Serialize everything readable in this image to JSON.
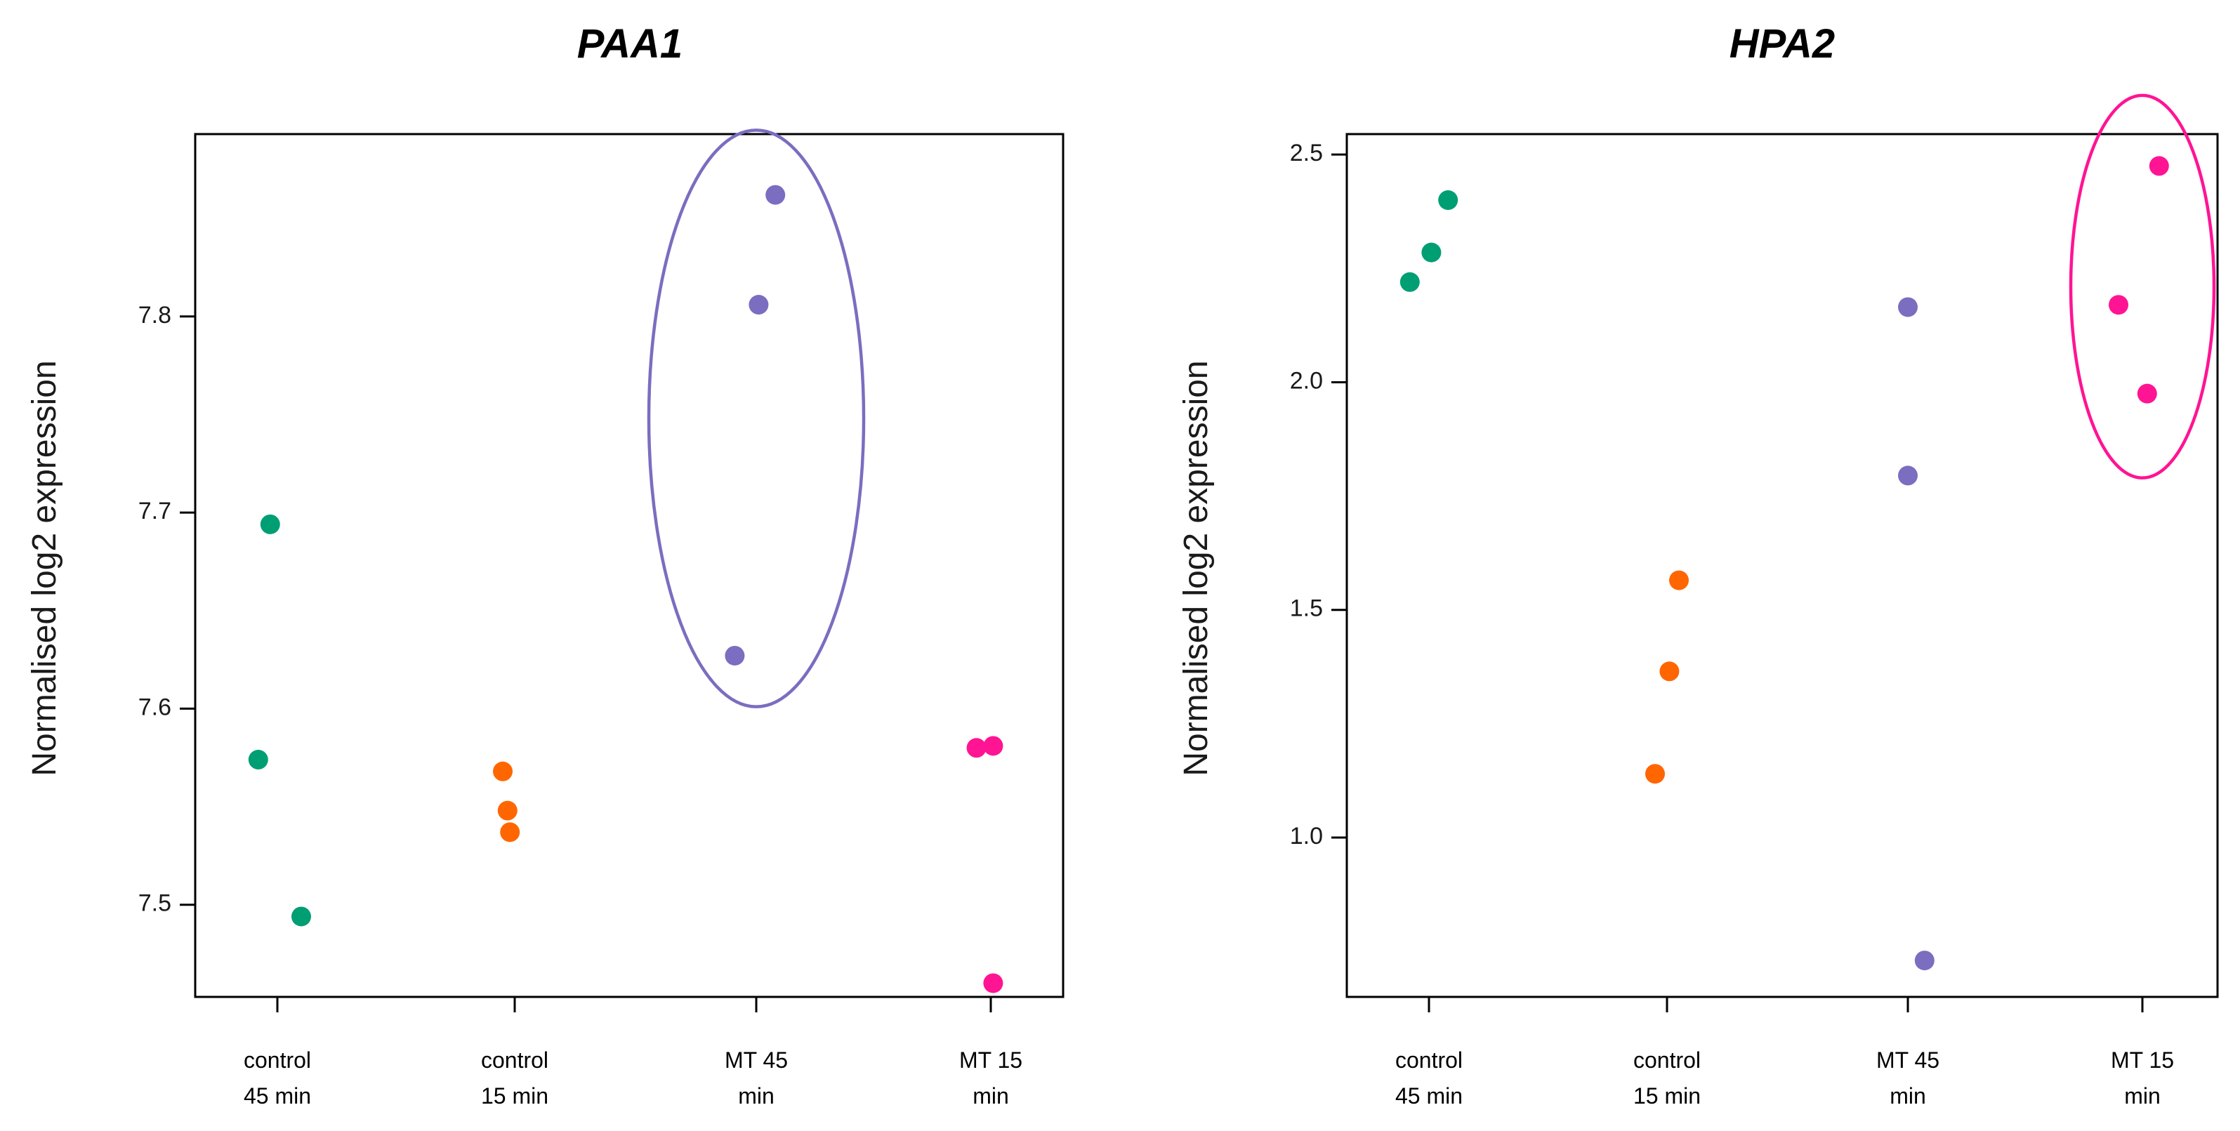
{
  "chart_data": [
    {
      "type": "scatter",
      "title": "PAA1",
      "ylabel": "Normalised log2 expression",
      "xlabel": "",
      "ylim": [
        7.453,
        7.893
      ],
      "yticks": [
        "7.5",
        "7.6",
        "7.7",
        "7.8"
      ],
      "categories": [
        {
          "line1": "control",
          "line2": "45 min"
        },
        {
          "line1": "control",
          "line2": "15 min"
        },
        {
          "line1": "MT 45",
          "line2": "min"
        },
        {
          "line1": "MT 15",
          "line2": "min"
        }
      ],
      "points": [
        {
          "group": 0,
          "jitter": -0.03,
          "y": 7.694
        },
        {
          "group": 0,
          "jitter": -0.08,
          "y": 7.574
        },
        {
          "group": 0,
          "jitter": 0.1,
          "y": 7.494
        },
        {
          "group": 1,
          "jitter": -0.05,
          "y": 7.568
        },
        {
          "group": 1,
          "jitter": -0.03,
          "y": 7.548
        },
        {
          "group": 1,
          "jitter": -0.02,
          "y": 7.537
        },
        {
          "group": 2,
          "jitter": 0.08,
          "y": 7.862
        },
        {
          "group": 2,
          "jitter": 0.01,
          "y": 7.806
        },
        {
          "group": 2,
          "jitter": -0.09,
          "y": 7.627
        },
        {
          "group": 3,
          "jitter": -0.06,
          "y": 7.58
        },
        {
          "group": 3,
          "jitter": 0.01,
          "y": 7.581
        },
        {
          "group": 3,
          "jitter": 0.01,
          "y": 7.46
        }
      ],
      "highlight": {
        "group": 2,
        "center_y": 7.748,
        "half_height_y": 0.147,
        "half_width_x": 0.45
      },
      "colors": [
        "#009E73",
        "#FF6600",
        "#7B6DC0",
        "#FF1493"
      ]
    },
    {
      "type": "scatter",
      "title": "HPA2",
      "ylabel": "Normalised log2 expression",
      "xlabel": "",
      "ylim": [
        0.65,
        2.545
      ],
      "yticks": [
        "1.0",
        "1.5",
        "2.0",
        "2.5"
      ],
      "categories": [
        {
          "line1": "control",
          "line2": "45 min"
        },
        {
          "line1": "control",
          "line2": "15 min"
        },
        {
          "line1": "MT 45",
          "line2": "min"
        },
        {
          "line1": "MT 15",
          "line2": "min"
        }
      ],
      "points": [
        {
          "group": 0,
          "jitter": -0.08,
          "y": 2.22
        },
        {
          "group": 0,
          "jitter": 0.01,
          "y": 2.285
        },
        {
          "group": 0,
          "jitter": 0.08,
          "y": 2.4
        },
        {
          "group": 1,
          "jitter": 0.05,
          "y": 1.565
        },
        {
          "group": 1,
          "jitter": 0.01,
          "y": 1.365
        },
        {
          "group": 1,
          "jitter": -0.05,
          "y": 1.14
        },
        {
          "group": 2,
          "jitter": 0.0,
          "y": 2.165
        },
        {
          "group": 2,
          "jitter": 0.0,
          "y": 1.795
        },
        {
          "group": 2,
          "jitter": 0.07,
          "y": 0.73
        },
        {
          "group": 3,
          "jitter": 0.07,
          "y": 2.475
        },
        {
          "group": 3,
          "jitter": -0.1,
          "y": 2.17
        },
        {
          "group": 3,
          "jitter": 0.02,
          "y": 1.975
        }
      ],
      "highlight": {
        "group": 3,
        "center_y": 2.21,
        "half_height_y": 0.42,
        "half_width_x": 0.3
      },
      "colors": [
        "#009E73",
        "#FF6600",
        "#7B6DC0",
        "#FF1493"
      ]
    }
  ]
}
